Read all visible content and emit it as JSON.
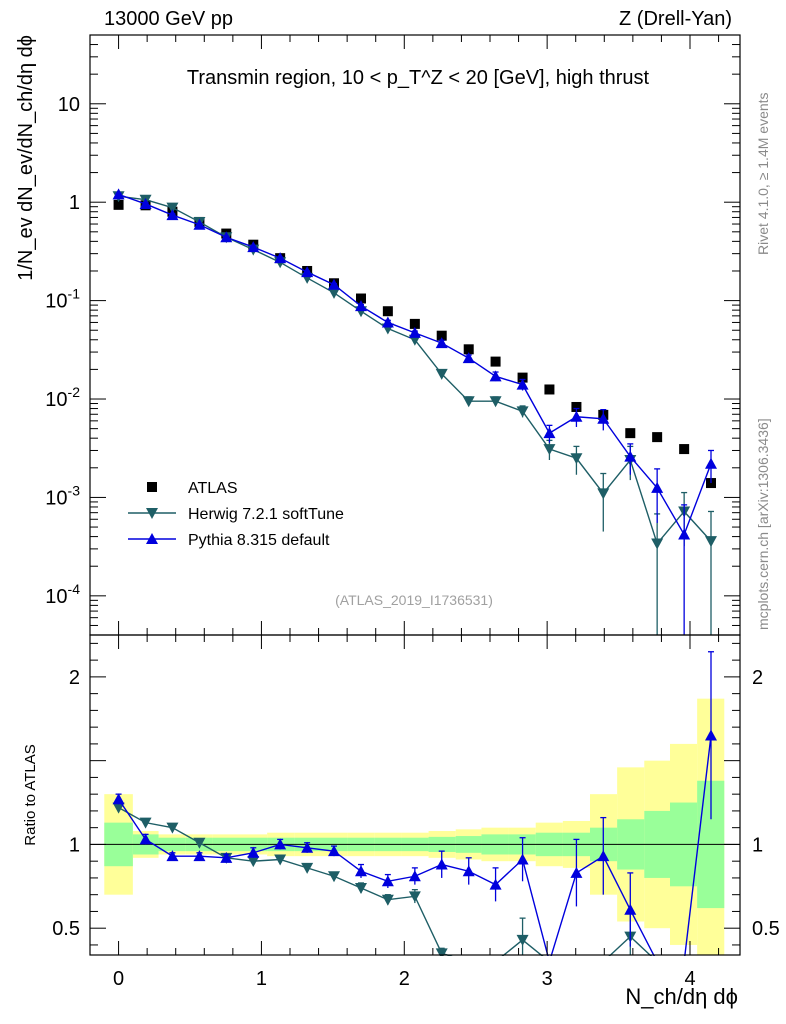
{
  "header": {
    "left": "13000 GeV pp",
    "right": "Z (Drell-Yan)"
  },
  "side": {
    "top": "Rivet 4.1.0, ≥ 1.4M events",
    "bottom": "mcplots.cern.ch [arXiv:1306.3436]"
  },
  "watermark": "(ATLAS_2019_I1736531)",
  "colors": {
    "data": "#000000",
    "herwig": "#1e5e66",
    "pythia": "#0000dd",
    "band_inner": "#99ff99",
    "band_outer": "#ffff99"
  },
  "chart_data": [
    {
      "type": "scatter",
      "title": "Transmin region, 10 < p_T^Z < 20 [GeV], high thrust",
      "xlabel": "N_ch/dη dϕ",
      "ylabel": "1/N_ev dN_ev/dN_ch/dη dϕ",
      "yscale": "log",
      "xlim": [
        -0.2,
        4.35
      ],
      "ylim": [
        4e-05,
        50
      ],
      "y_ticks": [
        {
          "v": 10,
          "label": "10"
        },
        {
          "v": 1,
          "label": "1"
        },
        {
          "v": 0.1,
          "label": "10^-1"
        },
        {
          "v": 0.01,
          "label": "10^-2"
        },
        {
          "v": 0.001,
          "label": "10^-3"
        },
        {
          "v": 0.0001,
          "label": "10^-4"
        }
      ],
      "x": [
        0,
        0.189,
        0.377,
        0.566,
        0.754,
        0.943,
        1.131,
        1.32,
        1.508,
        1.697,
        1.885,
        2.074,
        2.262,
        2.451,
        2.639,
        2.828,
        3.016,
        3.205,
        3.393,
        3.582,
        3.77,
        3.959,
        4.147
      ],
      "series": [
        {
          "name": "ATLAS",
          "marker": "square",
          "values": [
            0.94,
            0.93,
            0.8,
            0.63,
            0.48,
            0.37,
            0.27,
            0.2,
            0.15,
            0.105,
            0.078,
            0.058,
            0.044,
            0.032,
            0.024,
            0.0165,
            0.0125,
            0.0083,
            0.0069,
            0.0045,
            0.0041,
            0.0031,
            0.0014
          ]
        },
        {
          "name": "Herwig 7.2.1 softTune",
          "marker": "triangle-down",
          "values": [
            1.15,
            1.06,
            0.88,
            0.63,
            0.44,
            0.33,
            0.245,
            0.17,
            0.12,
            0.078,
            0.052,
            0.04,
            0.018,
            0.0095,
            0.0095,
            0.0075,
            0.0031,
            0.0025,
            0.0011,
            0.0024,
            0.00034,
            0.00072,
            0.00036
          ],
          "errors": [
            0.03,
            0.03,
            0.02,
            0.015,
            0.01,
            0.008,
            0.006,
            0.005,
            0.004,
            0.003,
            0.002,
            0.002,
            0.0015,
            0.001,
            0.001,
            0.001,
            0.0007,
            0.0008,
            0.00065,
            0.0009,
            0.00034,
            0.0004,
            0.00036
          ]
        },
        {
          "name": "Pythia 8.315 default",
          "marker": "triangle-up",
          "values": [
            1.2,
            0.96,
            0.74,
            0.59,
            0.44,
            0.35,
            0.27,
            0.195,
            0.145,
            0.088,
            0.06,
            0.047,
            0.037,
            0.026,
            0.017,
            0.014,
            0.0045,
            0.0066,
            0.0063,
            0.0026,
            0.00125,
            0.00042,
            0.0022
          ],
          "errors": [
            0.03,
            0.03,
            0.02,
            0.015,
            0.01,
            0.008,
            0.006,
            0.005,
            0.004,
            0.003,
            0.003,
            0.002,
            0.0025,
            0.002,
            0.0018,
            0.0018,
            0.0009,
            0.0014,
            0.0015,
            0.0009,
            0.0007,
            0.00042,
            0.0008
          ]
        }
      ]
    },
    {
      "type": "line",
      "title": "",
      "xlabel": "N_ch/dη dϕ",
      "ylabel": "Ratio to ATLAS",
      "xlim": [
        -0.2,
        4.35
      ],
      "ylim": [
        0.34,
        2.25
      ],
      "y_ticks": [
        {
          "v": 0.5,
          "label": "0.5"
        },
        {
          "v": 1,
          "label": "1"
        },
        {
          "v": 2,
          "label": "2"
        }
      ],
      "x_ticks": [
        0,
        1,
        2,
        3,
        4
      ],
      "x": [
        0,
        0.189,
        0.377,
        0.566,
        0.754,
        0.943,
        1.131,
        1.32,
        1.508,
        1.697,
        1.885,
        2.074,
        2.262,
        2.451,
        2.639,
        2.828,
        3.016,
        3.205,
        3.393,
        3.582,
        3.77,
        3.959,
        4.147
      ],
      "band_edges": [
        -0.1,
        0.1,
        0.28,
        0.47,
        0.66,
        0.85,
        1.04,
        1.23,
        1.41,
        1.6,
        1.79,
        1.98,
        2.17,
        2.36,
        2.54,
        2.73,
        2.92,
        3.11,
        3.3,
        3.49,
        3.68,
        3.86,
        4.05,
        4.24
      ],
      "band_inner": [
        0.13,
        0.06,
        0.04,
        0.04,
        0.04,
        0.04,
        0.04,
        0.04,
        0.04,
        0.04,
        0.04,
        0.04,
        0.045,
        0.05,
        0.06,
        0.06,
        0.07,
        0.07,
        0.1,
        0.15,
        0.2,
        0.25,
        0.38
      ],
      "band_outer": [
        0.3,
        0.08,
        0.06,
        0.06,
        0.06,
        0.06,
        0.07,
        0.07,
        0.07,
        0.07,
        0.07,
        0.07,
        0.08,
        0.09,
        0.1,
        0.1,
        0.13,
        0.14,
        0.3,
        0.46,
        0.5,
        0.6,
        0.87
      ],
      "series": [
        {
          "name": "Herwig 7.2.1 softTune",
          "marker": "triangle-down",
          "values": [
            1.22,
            1.13,
            1.1,
            1.01,
            0.92,
            0.9,
            0.91,
            0.86,
            0.81,
            0.74,
            0.67,
            0.69,
            0.35,
            0.3,
            0.3,
            0.43,
            0.3,
            0.3,
            0.3,
            0.45,
            0.3,
            0.3,
            0.3
          ],
          "errors": [
            0.02,
            0.02,
            0.02,
            0.02,
            0.02,
            0.02,
            0.02,
            0.02,
            0.02,
            0.03,
            0.03,
            0.04,
            0.03,
            0.1,
            0.1,
            0.13,
            0.1,
            0.1,
            0.1,
            0.15,
            0.1,
            0.1,
            0.1
          ]
        },
        {
          "name": "Pythia 8.315 default",
          "marker": "triangle-up",
          "values": [
            1.27,
            1.03,
            0.93,
            0.93,
            0.92,
            0.95,
            1.0,
            0.98,
            0.96,
            0.84,
            0.78,
            0.81,
            0.88,
            0.84,
            0.76,
            0.91,
            0.3,
            0.83,
            0.93,
            0.61,
            0.3,
            0.3,
            1.65
          ],
          "errors": [
            0.03,
            0.03,
            0.02,
            0.02,
            0.02,
            0.03,
            0.03,
            0.03,
            0.03,
            0.04,
            0.04,
            0.05,
            0.08,
            0.08,
            0.1,
            0.13,
            0.1,
            0.2,
            0.23,
            0.22,
            0.3,
            0.3,
            0.5
          ]
        }
      ]
    }
  ]
}
